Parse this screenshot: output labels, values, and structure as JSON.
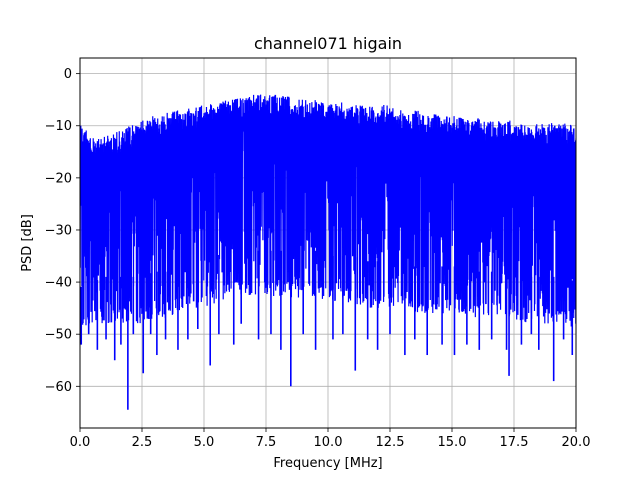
{
  "chart_data": {
    "type": "line",
    "title": "channel071 higain",
    "xlabel": "Frequency [MHz]",
    "ylabel": "PSD [dB]",
    "xlim": [
      0,
      20
    ],
    "ylim": [
      -68,
      3
    ],
    "grid": true,
    "x_ticks": [
      0,
      2.5,
      5,
      7.5,
      10,
      12.5,
      15,
      17.5,
      20
    ],
    "x_tick_labels": [
      "0.0",
      "2.5",
      "5.0",
      "7.5",
      "10.0",
      "12.5",
      "15.0",
      "17.5",
      "20.0"
    ],
    "y_ticks": [
      0,
      -10,
      -20,
      -30,
      -40,
      -50,
      -60
    ],
    "y_tick_labels": [
      "0",
      "−10",
      "−20",
      "−30",
      "−40",
      "−50",
      "−60"
    ],
    "series": [
      {
        "color": "#0000ff",
        "x": [
          0,
          0.5,
          1,
          1.5,
          2,
          2.5,
          3,
          3.5,
          4,
          4.5,
          5,
          5.5,
          6,
          6.5,
          7,
          7.5,
          8,
          8.5,
          9,
          9.5,
          10,
          10.5,
          11,
          11.5,
          12,
          12.5,
          13,
          13.5,
          14,
          14.5,
          15,
          15.5,
          16,
          16.5,
          17,
          17.5,
          18,
          18.5,
          19,
          19.5,
          20
        ],
        "upper": [
          -9,
          -12,
          -12,
          -11,
          -10,
          -9,
          -8,
          -7.5,
          -7,
          -6.5,
          -6,
          -5.5,
          -5,
          -4.5,
          -4,
          -3.5,
          -4,
          -4.5,
          -5,
          -5,
          -5.5,
          -5.5,
          -6,
          -6,
          -6,
          -6,
          -7,
          -7,
          -7.5,
          -8,
          -8,
          -8.5,
          -8.5,
          -9,
          -9,
          -9,
          -9.5,
          -9.5,
          -9.5,
          -9.5,
          -10
        ],
        "typical_low": [
          -47,
          -46,
          -45,
          -45,
          -45,
          -45,
          -44,
          -44,
          -43,
          -42,
          -42,
          -41,
          -40,
          -40,
          -40,
          -40,
          -40,
          -40,
          -40,
          -40,
          -41,
          -41,
          -41,
          -42,
          -42,
          -42,
          -42,
          -43,
          -43,
          -43,
          -43,
          -43,
          -44,
          -44,
          -44,
          -44,
          -45,
          -45,
          -45,
          -45,
          -46
        ],
        "deep_dips": [
          {
            "x": 0.05,
            "y": -52
          },
          {
            "x": 0.35,
            "y": -50
          },
          {
            "x": 0.7,
            "y": -53
          },
          {
            "x": 1.05,
            "y": -51
          },
          {
            "x": 1.4,
            "y": -55
          },
          {
            "x": 1.65,
            "y": -52
          },
          {
            "x": 1.93,
            "y": -64.5
          },
          {
            "x": 2.15,
            "y": -50
          },
          {
            "x": 2.55,
            "y": -57.5
          },
          {
            "x": 2.85,
            "y": -50
          },
          {
            "x": 3.1,
            "y": -54
          },
          {
            "x": 3.45,
            "y": -51
          },
          {
            "x": 3.95,
            "y": -53
          },
          {
            "x": 4.35,
            "y": -51
          },
          {
            "x": 4.75,
            "y": -49
          },
          {
            "x": 5.25,
            "y": -56
          },
          {
            "x": 5.6,
            "y": -50
          },
          {
            "x": 6.2,
            "y": -52
          },
          {
            "x": 6.5,
            "y": -48
          },
          {
            "x": 7.2,
            "y": -51
          },
          {
            "x": 7.7,
            "y": -50
          },
          {
            "x": 8.1,
            "y": -53
          },
          {
            "x": 8.5,
            "y": -60
          },
          {
            "x": 9.0,
            "y": -50
          },
          {
            "x": 9.5,
            "y": -53
          },
          {
            "x": 10.2,
            "y": -51
          },
          {
            "x": 10.6,
            "y": -50
          },
          {
            "x": 11.1,
            "y": -57
          },
          {
            "x": 11.6,
            "y": -51
          },
          {
            "x": 12.0,
            "y": -53
          },
          {
            "x": 12.5,
            "y": -50
          },
          {
            "x": 13.1,
            "y": -54
          },
          {
            "x": 13.5,
            "y": -51
          },
          {
            "x": 14.0,
            "y": -54
          },
          {
            "x": 14.6,
            "y": -52
          },
          {
            "x": 15.1,
            "y": -54
          },
          {
            "x": 15.6,
            "y": -52
          },
          {
            "x": 16.1,
            "y": -53
          },
          {
            "x": 16.6,
            "y": -51
          },
          {
            "x": 17.2,
            "y": -53
          },
          {
            "x": 17.3,
            "y": -58
          },
          {
            "x": 17.8,
            "y": -52
          },
          {
            "x": 18.2,
            "y": -50
          },
          {
            "x": 18.5,
            "y": -53
          },
          {
            "x": 19.1,
            "y": -59
          },
          {
            "x": 19.5,
            "y": -51
          },
          {
            "x": 19.85,
            "y": -54
          }
        ]
      }
    ]
  }
}
